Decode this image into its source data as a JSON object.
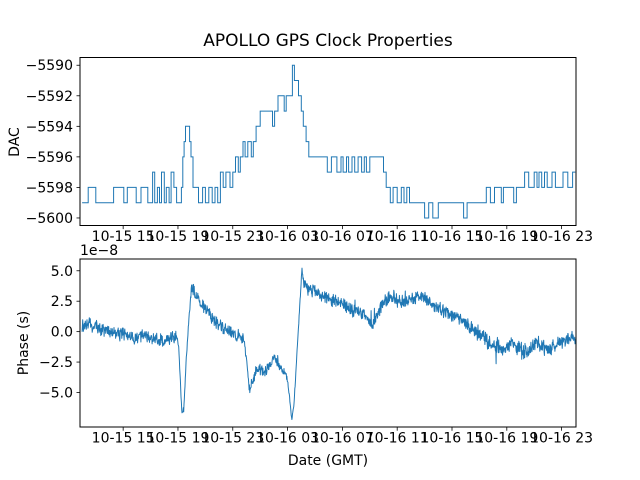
{
  "figure": {
    "title": "APOLLO GPS Clock Properties",
    "background_color": "#ffffff",
    "line_color": "#1f77b4",
    "axis_color": "#000000"
  },
  "chart_data": [
    {
      "type": "line",
      "line_style": "step-post",
      "title": "APOLLO GPS Clock Properties",
      "ylabel": "DAC",
      "xlabel": "",
      "legend": "none",
      "grid": false,
      "ylim": [
        -5600.5,
        -5589.5
      ],
      "yticks": [
        -5590,
        -5592,
        -5594,
        -5596,
        -5598,
        -5600
      ],
      "yticklabels": [
        "−5590",
        "−5592",
        "−5594",
        "−5596",
        "−5598",
        "−5600"
      ],
      "xlim_hours": [
        -0.15,
        36.05
      ],
      "xtick_hours": [
        3,
        7,
        11,
        15,
        19,
        23,
        27,
        31,
        35
      ],
      "xticklabels": [
        "10-15 15",
        "10-15 19",
        "10-15 23",
        "10-16 03",
        "10-16 07",
        "10-16 11",
        "10-16 15",
        "10-16 19",
        "10-16 23"
      ],
      "steps_t_dac": [
        [
          0,
          -5599
        ],
        [
          0.45,
          -5598
        ],
        [
          1.0,
          -5599
        ],
        [
          2.3,
          -5598
        ],
        [
          3.05,
          -5599
        ],
        [
          3.3,
          -5598
        ],
        [
          3.95,
          -5599
        ],
        [
          4.3,
          -5598
        ],
        [
          4.8,
          -5599
        ],
        [
          5.15,
          -5597
        ],
        [
          5.3,
          -5599
        ],
        [
          5.5,
          -5598
        ],
        [
          5.65,
          -5599
        ],
        [
          5.8,
          -5597
        ],
        [
          6.0,
          -5599
        ],
        [
          6.15,
          -5598
        ],
        [
          6.35,
          -5599
        ],
        [
          6.5,
          -5597
        ],
        [
          6.7,
          -5598
        ],
        [
          6.9,
          -5599
        ],
        [
          7.25,
          -5598
        ],
        [
          7.35,
          -5596
        ],
        [
          7.45,
          -5595
        ],
        [
          7.55,
          -5594
        ],
        [
          7.85,
          -5595
        ],
        [
          7.95,
          -5596
        ],
        [
          8.1,
          -5598
        ],
        [
          8.5,
          -5599
        ],
        [
          8.8,
          -5598
        ],
        [
          9.0,
          -5599
        ],
        [
          9.25,
          -5598
        ],
        [
          9.5,
          -5599
        ],
        [
          9.7,
          -5598
        ],
        [
          9.9,
          -5599
        ],
        [
          10.1,
          -5597
        ],
        [
          10.3,
          -5598
        ],
        [
          10.5,
          -5597
        ],
        [
          10.8,
          -5598
        ],
        [
          11.0,
          -5597
        ],
        [
          11.2,
          -5596
        ],
        [
          11.4,
          -5597
        ],
        [
          11.55,
          -5596
        ],
        [
          11.75,
          -5595
        ],
        [
          11.9,
          -5596
        ],
        [
          12.1,
          -5595
        ],
        [
          12.35,
          -5596
        ],
        [
          12.5,
          -5595
        ],
        [
          12.7,
          -5594
        ],
        [
          13.0,
          -5593
        ],
        [
          13.9,
          -5594
        ],
        [
          14.05,
          -5593
        ],
        [
          14.3,
          -5592
        ],
        [
          14.75,
          -5593
        ],
        [
          14.9,
          -5592
        ],
        [
          15.35,
          -5590
        ],
        [
          15.5,
          -5591
        ],
        [
          15.8,
          -5592
        ],
        [
          16.0,
          -5593
        ],
        [
          16.15,
          -5594
        ],
        [
          16.35,
          -5595
        ],
        [
          16.55,
          -5596
        ],
        [
          17.9,
          -5597
        ],
        [
          18.2,
          -5596
        ],
        [
          18.6,
          -5597
        ],
        [
          18.9,
          -5596
        ],
        [
          19.05,
          -5597
        ],
        [
          19.3,
          -5596
        ],
        [
          19.45,
          -5597
        ],
        [
          19.7,
          -5596
        ],
        [
          19.9,
          -5597
        ],
        [
          20.15,
          -5596
        ],
        [
          20.4,
          -5597
        ],
        [
          20.6,
          -5596
        ],
        [
          20.75,
          -5597
        ],
        [
          21.0,
          -5596
        ],
        [
          22.0,
          -5597
        ],
        [
          22.2,
          -5598
        ],
        [
          22.5,
          -5599
        ],
        [
          22.7,
          -5598
        ],
        [
          23.0,
          -5599
        ],
        [
          23.3,
          -5598
        ],
        [
          23.5,
          -5599
        ],
        [
          23.7,
          -5598
        ],
        [
          23.9,
          -5599
        ],
        [
          25.0,
          -5600
        ],
        [
          25.3,
          -5599
        ],
        [
          25.6,
          -5600
        ],
        [
          26.0,
          -5599
        ],
        [
          27.85,
          -5600
        ],
        [
          28.1,
          -5599
        ],
        [
          29.5,
          -5598
        ],
        [
          29.8,
          -5599
        ],
        [
          30.1,
          -5598
        ],
        [
          30.6,
          -5599
        ],
        [
          30.75,
          -5598
        ],
        [
          31.5,
          -5599
        ],
        [
          31.7,
          -5598
        ],
        [
          32.3,
          -5597
        ],
        [
          32.6,
          -5598
        ],
        [
          33.0,
          -5597
        ],
        [
          33.2,
          -5598
        ],
        [
          33.35,
          -5597
        ],
        [
          33.55,
          -5598
        ],
        [
          33.75,
          -5597
        ],
        [
          33.95,
          -5598
        ],
        [
          34.3,
          -5597
        ],
        [
          34.55,
          -5598
        ],
        [
          35.1,
          -5597
        ],
        [
          35.45,
          -5598
        ],
        [
          35.8,
          -5597
        ],
        [
          36.0,
          -5597
        ]
      ]
    },
    {
      "type": "line",
      "title": "",
      "ylabel": "Phase (s)",
      "xlabel": "Date (GMT)",
      "offset_text": "1e−8",
      "y_scale": 1e-08,
      "legend": "none",
      "grid": false,
      "ylim": [
        -7.85,
        5.95
      ],
      "yticks": [
        5.0,
        2.5,
        0.0,
        -2.5,
        -5.0
      ],
      "yticklabels": [
        "5.0",
        "2.5",
        "0.0",
        "−2.5",
        "−5.0"
      ],
      "xlim_hours": [
        -0.15,
        36.05
      ],
      "xtick_hours": [
        3,
        7,
        11,
        15,
        19,
        23,
        27,
        31,
        35
      ],
      "xticklabels": [
        "10-15 15",
        "10-15 19",
        "10-15 23",
        "10-16 03",
        "10-16 07",
        "10-16 11",
        "10-16 15",
        "10-16 19",
        "10-16 23"
      ],
      "mean_anchors_t_value": [
        [
          0,
          0.4
        ],
        [
          0.5,
          0.6
        ],
        [
          1.0,
          0.45
        ],
        [
          1.5,
          0.2
        ],
        [
          2.0,
          0.1
        ],
        [
          2.5,
          -0.15
        ],
        [
          3.0,
          -0.2
        ],
        [
          3.5,
          -0.5
        ],
        [
          4.0,
          -0.45
        ],
        [
          4.5,
          -0.25
        ],
        [
          5.0,
          -0.5
        ],
        [
          5.5,
          -0.65
        ],
        [
          6.0,
          -0.8
        ],
        [
          6.5,
          -0.6
        ],
        [
          6.9,
          -0.4
        ],
        [
          7.05,
          -1.2
        ],
        [
          7.3,
          -6.9
        ],
        [
          7.45,
          -5.8
        ],
        [
          7.6,
          -2.5
        ],
        [
          7.8,
          1.2
        ],
        [
          8.0,
          3.7
        ],
        [
          8.2,
          3.2
        ],
        [
          8.5,
          2.7
        ],
        [
          8.8,
          2.2
        ],
        [
          9.2,
          1.6
        ],
        [
          9.6,
          1.0
        ],
        [
          10.0,
          0.6
        ],
        [
          10.4,
          0.3
        ],
        [
          10.8,
          -0.1
        ],
        [
          11.2,
          -0.4
        ],
        [
          11.5,
          -0.2
        ],
        [
          11.8,
          -0.6
        ],
        [
          12.0,
          -2.2
        ],
        [
          12.2,
          -4.7
        ],
        [
          12.4,
          -4.2
        ],
        [
          12.6,
          -3.4
        ],
        [
          12.9,
          -3.0
        ],
        [
          13.2,
          -3.3
        ],
        [
          13.5,
          -3.1
        ],
        [
          13.8,
          -2.7
        ],
        [
          14.0,
          -1.9
        ],
        [
          14.2,
          -2.4
        ],
        [
          14.5,
          -3.1
        ],
        [
          14.8,
          -3.4
        ],
        [
          15.0,
          -4.0
        ],
        [
          15.15,
          -5.5
        ],
        [
          15.3,
          -7.2
        ],
        [
          15.45,
          -6.2
        ],
        [
          15.6,
          -3.5
        ],
        [
          15.8,
          0.5
        ],
        [
          16.05,
          5.1
        ],
        [
          16.2,
          4.0
        ],
        [
          16.5,
          3.5
        ],
        [
          16.9,
          3.3
        ],
        [
          17.3,
          3.1
        ],
        [
          17.7,
          2.9
        ],
        [
          18.1,
          2.7
        ],
        [
          18.5,
          2.5
        ],
        [
          18.9,
          2.3
        ],
        [
          19.3,
          2.1
        ],
        [
          19.7,
          1.9
        ],
        [
          20.1,
          1.7
        ],
        [
          20.5,
          1.4
        ],
        [
          20.9,
          0.9
        ],
        [
          21.2,
          0.5
        ],
        [
          21.5,
          1.2
        ],
        [
          21.9,
          2.2
        ],
        [
          22.3,
          2.7
        ],
        [
          22.7,
          3.0
        ],
        [
          23.0,
          2.5
        ],
        [
          23.4,
          2.4
        ],
        [
          23.8,
          2.6
        ],
        [
          24.2,
          2.8
        ],
        [
          24.6,
          2.9
        ],
        [
          25.0,
          2.7
        ],
        [
          25.4,
          2.4
        ],
        [
          25.8,
          2.2
        ],
        [
          26.2,
          1.9
        ],
        [
          26.6,
          1.6
        ],
        [
          27.0,
          1.4
        ],
        [
          27.4,
          1.2
        ],
        [
          27.8,
          0.9
        ],
        [
          28.2,
          0.6
        ],
        [
          28.6,
          0.2
        ],
        [
          29.0,
          -0.2
        ],
        [
          29.4,
          -0.6
        ],
        [
          29.8,
          -1.0
        ],
        [
          30.2,
          -1.1
        ],
        [
          30.6,
          -1.4
        ],
        [
          31.0,
          -1.2
        ],
        [
          31.4,
          -1.0
        ],
        [
          31.8,
          -1.3
        ],
        [
          32.2,
          -1.7
        ],
        [
          32.6,
          -1.4
        ],
        [
          33.0,
          -1.2
        ],
        [
          33.4,
          -1.1
        ],
        [
          33.8,
          -1.3
        ],
        [
          34.2,
          -1.5
        ],
        [
          34.6,
          -1.0
        ],
        [
          35.0,
          -0.8
        ],
        [
          35.4,
          -0.6
        ],
        [
          35.7,
          -0.4
        ],
        [
          36.0,
          -0.8
        ]
      ],
      "noise_amp_anchors": [
        [
          0,
          0.5
        ],
        [
          6.8,
          0.5
        ],
        [
          7.0,
          0.15
        ],
        [
          7.75,
          0.3
        ],
        [
          8.1,
          0.45
        ],
        [
          11.7,
          0.5
        ],
        [
          12.05,
          0.25
        ],
        [
          12.4,
          0.45
        ],
        [
          14.9,
          0.3
        ],
        [
          15.1,
          0.1
        ],
        [
          15.9,
          0.2
        ],
        [
          16.3,
          0.45
        ],
        [
          28.0,
          0.55
        ],
        [
          33.0,
          0.6
        ],
        [
          36.0,
          0.5
        ]
      ],
      "noise_seed": 7,
      "n_points": 1500
    }
  ]
}
